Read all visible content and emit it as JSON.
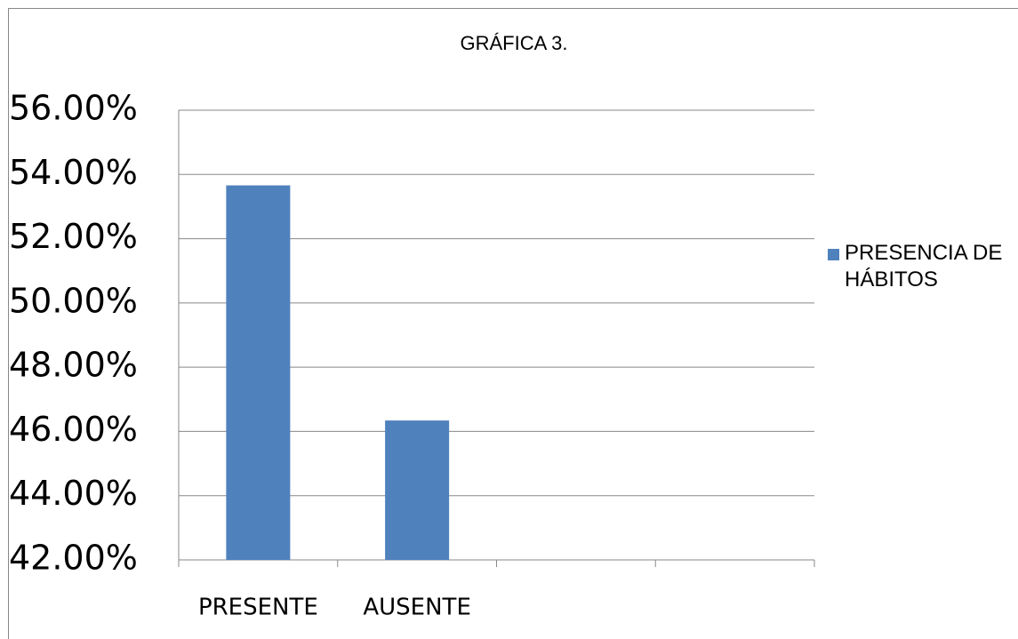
{
  "chart_data": {
    "type": "bar",
    "title": "GRÁFICA 3.",
    "categories": [
      "PRESENTE",
      "AUSENTE",
      null,
      null
    ],
    "series": [
      {
        "name": "PRESENCIA DE HÁBITOS",
        "color": "#4f81bd",
        "values": [
          53.66,
          46.34,
          null,
          null
        ]
      }
    ],
    "ylim": [
      42,
      56
    ],
    "yticks": [
      {
        "value": 42,
        "label": "42.00%"
      },
      {
        "value": 44,
        "label": "44.00%"
      },
      {
        "value": 46,
        "label": "46.00%"
      },
      {
        "value": 48,
        "label": "48.00%"
      },
      {
        "value": 50,
        "label": "50.00%"
      },
      {
        "value": 52,
        "label": "52.00%"
      },
      {
        "value": 54,
        "label": "54.00%"
      },
      {
        "value": 56,
        "label": "56.00%"
      }
    ],
    "grid": true,
    "legend": "right"
  }
}
